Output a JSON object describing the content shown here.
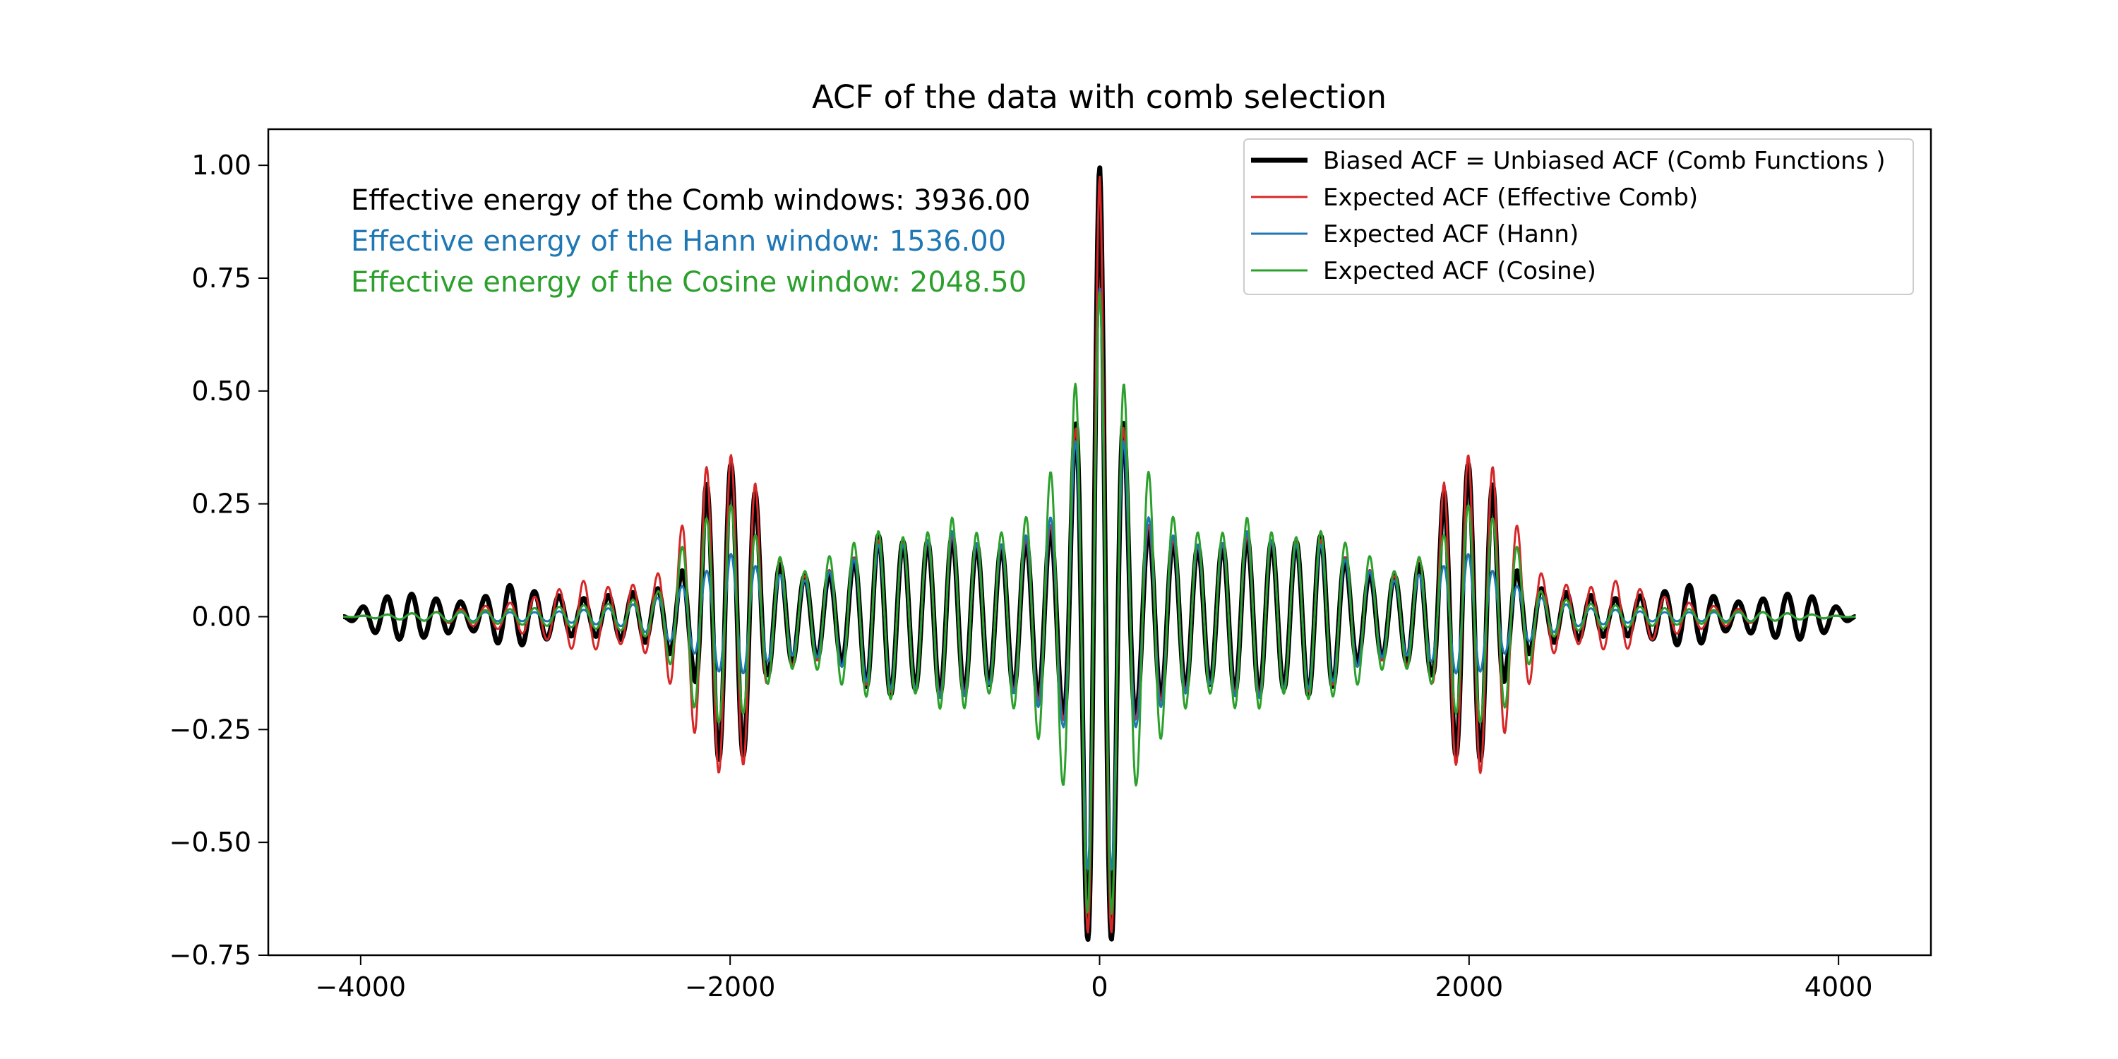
{
  "chart_data": {
    "type": "line",
    "title": "ACF of the data with comb selection",
    "xlabel": "",
    "ylabel": "",
    "xlim": [
      -4500,
      4500
    ],
    "ylim": [
      -0.75,
      1.08
    ],
    "xticks": [
      -4000,
      -2000,
      0,
      2000,
      4000
    ],
    "xtick_labels": [
      "−4000",
      "−2000",
      "0",
      "2000",
      "4000"
    ],
    "yticks": [
      -0.75,
      -0.5,
      -0.25,
      0.0,
      0.25,
      0.5,
      0.75,
      1.0
    ],
    "ytick_labels": [
      "−0.75",
      "−0.50",
      "−0.25",
      "0.00",
      "0.25",
      "0.50",
      "0.75",
      "1.00"
    ],
    "grid": false,
    "legend_position": "top-right",
    "annotations": [
      {
        "text": "Effective energy of the Comb windows: 3936.00",
        "color": "#000000"
      },
      {
        "text": "Effective energy of the Hann window: 1536.00",
        "color": "#1f77b4"
      },
      {
        "text": "Effective energy of the Cosine window: 2048.50",
        "color": "#2ca02c"
      }
    ],
    "series": [
      {
        "name": "Biased ACF = Unbiased ACF (Comb Functions )",
        "color": "#000000",
        "x": [
          -4095,
          -3900,
          -3800,
          -3700,
          -3600,
          -3400,
          -3200,
          -3000,
          -2800,
          -2600,
          -2400,
          -2200,
          -2135,
          -2000,
          -1865,
          -1800,
          -1600,
          -1400,
          -1200,
          -1000,
          -800,
          -600,
          -400,
          -200,
          -135,
          0,
          135,
          200,
          400,
          600,
          800,
          1000,
          1200,
          1400,
          1600,
          1800,
          1865,
          2000,
          2135,
          2200,
          2400,
          2600,
          2800,
          3000,
          3200,
          3400,
          3600,
          3700,
          3800,
          3900,
          4095
        ],
        "y": [
          0.0,
          0.04,
          0.05,
          0.05,
          0.04,
          0.03,
          0.07,
          0.05,
          0.04,
          0.05,
          0.06,
          0.12,
          0.29,
          0.34,
          0.28,
          0.13,
          0.09,
          0.1,
          0.18,
          0.16,
          0.18,
          0.15,
          0.17,
          0.21,
          0.41,
          1.0,
          0.41,
          0.21,
          0.17,
          0.15,
          0.18,
          0.16,
          0.18,
          0.1,
          0.09,
          0.13,
          0.28,
          0.34,
          0.29,
          0.12,
          0.06,
          0.05,
          0.04,
          0.05,
          0.07,
          0.03,
          0.04,
          0.05,
          0.05,
          0.04,
          0.0
        ]
      },
      {
        "name": "Expected ACF (Effective Comb)",
        "color": "#d62728",
        "x": [
          -4095,
          -3600,
          -3200,
          -3000,
          -2800,
          -2600,
          -2400,
          -2200,
          -2135,
          -2000,
          -1865,
          -1800,
          -1600,
          -1400,
          -1200,
          -1000,
          -800,
          -600,
          -400,
          -200,
          -135,
          0,
          135,
          200,
          400,
          600,
          800,
          1000,
          1200,
          1400,
          1600,
          1800,
          1865,
          2000,
          2135,
          2200,
          2400,
          2600,
          2800,
          3000,
          3200,
          3600,
          4095
        ],
        "y": [
          0.0,
          0.01,
          0.03,
          0.05,
          0.08,
          0.06,
          0.09,
          0.25,
          0.33,
          0.36,
          0.3,
          0.15,
          0.09,
          0.11,
          0.17,
          0.16,
          0.18,
          0.15,
          0.17,
          0.22,
          0.4,
          0.98,
          0.4,
          0.22,
          0.17,
          0.15,
          0.18,
          0.16,
          0.17,
          0.11,
          0.09,
          0.15,
          0.3,
          0.36,
          0.33,
          0.25,
          0.09,
          0.06,
          0.08,
          0.05,
          0.03,
          0.01,
          0.0
        ]
      },
      {
        "name": "Expected ACF (Hann)",
        "color": "#1f77b4",
        "x": [
          -4095,
          -3600,
          -3000,
          -2600,
          -2400,
          -2200,
          -2000,
          -1800,
          -1600,
          -1400,
          -1200,
          -1000,
          -800,
          -600,
          -400,
          -200,
          -135,
          0,
          135,
          200,
          400,
          600,
          800,
          1000,
          1200,
          1400,
          1600,
          1800,
          2000,
          2200,
          2400,
          2600,
          3000,
          3600,
          4095
        ],
        "y": [
          0.0,
          0.01,
          0.01,
          0.02,
          0.04,
          0.08,
          0.14,
          0.1,
          0.08,
          0.11,
          0.16,
          0.16,
          0.19,
          0.15,
          0.18,
          0.24,
          0.38,
          0.73,
          0.38,
          0.24,
          0.18,
          0.15,
          0.19,
          0.16,
          0.16,
          0.11,
          0.08,
          0.1,
          0.14,
          0.08,
          0.04,
          0.02,
          0.01,
          0.01,
          0.0
        ]
      },
      {
        "name": "Expected ACF (Cosine)",
        "color": "#2ca02c",
        "x": [
          -4095,
          -3600,
          -3000,
          -2600,
          -2400,
          -2200,
          -2000,
          -1800,
          -1600,
          -1400,
          -1200,
          -1000,
          -800,
          -600,
          -400,
          -200,
          -65,
          0,
          65,
          200,
          400,
          600,
          800,
          1000,
          1200,
          1400,
          1600,
          1800,
          2000,
          2200,
          2400,
          2600,
          3000,
          3600,
          4095
        ],
        "y": [
          0.0,
          0.01,
          0.02,
          0.03,
          0.05,
          0.2,
          0.25,
          0.15,
          0.1,
          0.15,
          0.19,
          0.17,
          0.22,
          0.17,
          0.22,
          0.37,
          0.66,
          0.72,
          0.66,
          0.37,
          0.22,
          0.17,
          0.22,
          0.17,
          0.19,
          0.15,
          0.1,
          0.15,
          0.25,
          0.2,
          0.05,
          0.03,
          0.02,
          0.01,
          0.0
        ]
      }
    ]
  }
}
